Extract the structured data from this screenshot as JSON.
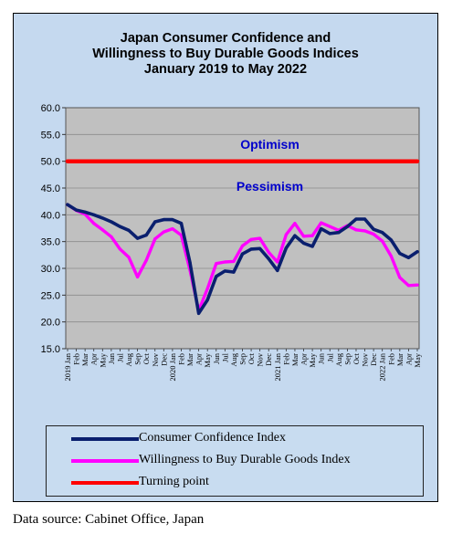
{
  "colors": {
    "outer_bg": "#c5d9ef",
    "plot_bg": "#c0c0c0",
    "confidence": "#0a1f6e",
    "willingness": "#ff00ff",
    "turning_point": "#ff0000",
    "annotation": "#0000cc"
  },
  "chart_data": {
    "type": "line",
    "title": [
      "Japan Consumer Confidence and",
      "Willingness to Buy Durable Goods Indices",
      "January 2019 to May 2022"
    ],
    "xlabel": "",
    "ylabel": "",
    "ylim": [
      15,
      60
    ],
    "yticks": [
      "15.0",
      "20.0",
      "25.0",
      "30.0",
      "35.0",
      "40.0",
      "45.0",
      "50.0",
      "55.0",
      "60.0"
    ],
    "grid": true,
    "legend_position": "bottom",
    "categories": [
      "2019 Jan",
      "Feb",
      "Mar",
      "Apr",
      "May",
      "Jun",
      "Jul",
      "Aug",
      "Sep",
      "Oct",
      "Nov",
      "Dec",
      "2020 Jan",
      "Feb",
      "Mar",
      "Apr",
      "May",
      "Jun",
      "Jul",
      "Aug",
      "Sep",
      "Oct",
      "Nov",
      "Dec",
      "2021 Jan",
      "Feb",
      "Mar",
      "Apr",
      "May",
      "Jun",
      "Jul",
      "Aug",
      "Sep",
      "Oct",
      "Nov",
      "Dec",
      "2022 Jan",
      "Feb",
      "Mar",
      "Apr",
      "May"
    ],
    "series": [
      {
        "name": "Consumer Confidence Index",
        "color": "#0a1f6e",
        "values": [
          41.9,
          40.9,
          40.5,
          40.0,
          39.4,
          38.7,
          37.8,
          37.1,
          35.6,
          36.2,
          38.7,
          39.1,
          39.1,
          38.4,
          31.1,
          21.6,
          24.1,
          28.5,
          29.5,
          29.3,
          32.7,
          33.6,
          33.7,
          31.8,
          29.6,
          33.8,
          36.1,
          34.7,
          34.1,
          37.4,
          36.5,
          36.7,
          37.8,
          39.2,
          39.2,
          37.3,
          36.7,
          35.3,
          32.8,
          32.0,
          33.1
        ]
      },
      {
        "name": "Willingness to Buy Durable Goods Index",
        "color": "#ff00ff",
        "values": [
          41.9,
          40.8,
          40.1,
          38.4,
          37.2,
          35.9,
          33.6,
          32.1,
          28.4,
          31.5,
          35.5,
          36.8,
          37.4,
          36.2,
          29.7,
          22.1,
          26.2,
          30.9,
          31.2,
          31.3,
          34.2,
          35.4,
          35.6,
          33.0,
          31.2,
          36.3,
          38.4,
          36.0,
          36.1,
          38.5,
          37.8,
          37.1,
          38.0,
          37.2,
          37.0,
          36.4,
          35.1,
          32.3,
          28.3,
          26.8,
          26.9
        ]
      },
      {
        "name": "Turning point",
        "color": "#ff0000",
        "values": [
          50,
          50,
          50,
          50,
          50,
          50,
          50,
          50,
          50,
          50,
          50,
          50,
          50,
          50,
          50,
          50,
          50,
          50,
          50,
          50,
          50,
          50,
          50,
          50,
          50,
          50,
          50,
          50,
          50,
          50,
          50,
          50,
          50,
          50,
          50,
          50,
          50,
          50,
          50,
          50,
          50
        ]
      }
    ],
    "annotations": [
      {
        "text": "Optimism",
        "y": 52.3
      },
      {
        "text": "Pessimism",
        "y": 44.5
      }
    ]
  },
  "source_note": "Data source: Cabinet Office, Japan"
}
